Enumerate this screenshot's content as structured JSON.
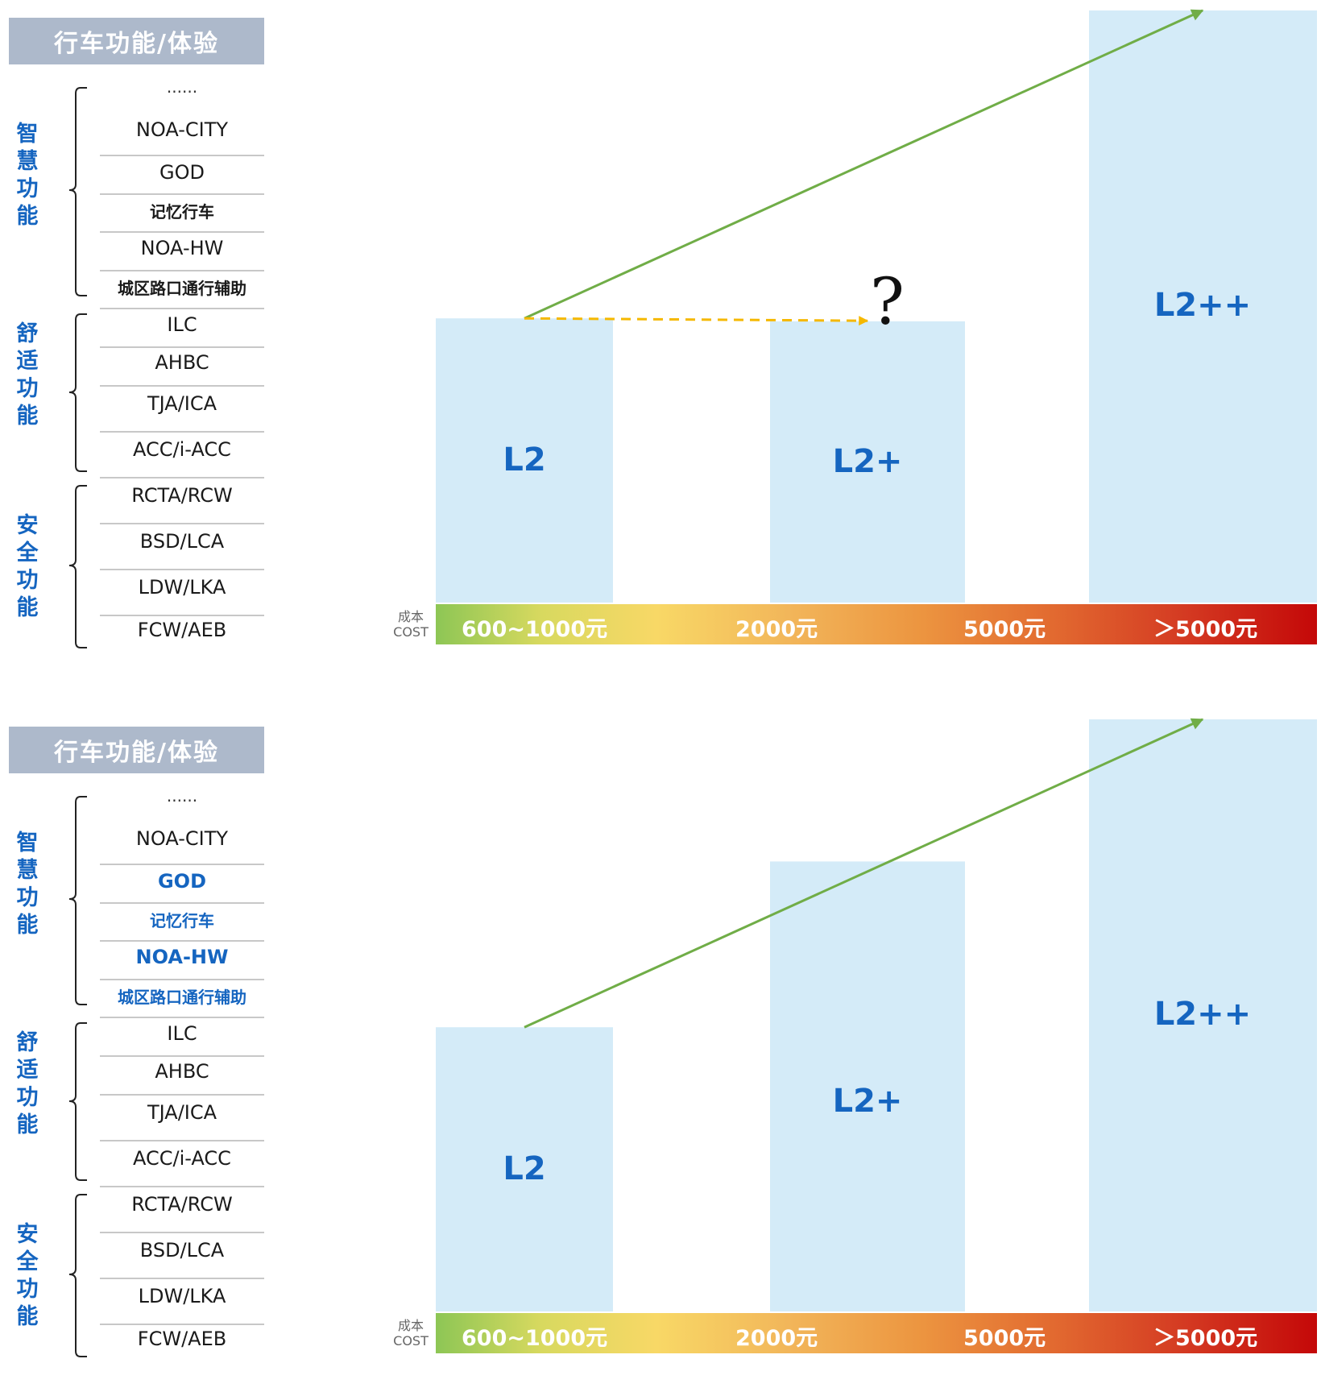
{
  "panels": [
    {
      "header": "行车功能/体验",
      "groups": [
        "智慧功能",
        "舒适功能",
        "安全功能"
      ],
      "features": [
        "......",
        "NOA-CITY",
        "GOD",
        "记忆行车",
        "NOA-HW",
        "城区路口通行辅助",
        "ILC",
        "AHBC",
        "TJA/ICA",
        "ACC/i-ACC",
        "RCTA/RCW",
        "BSD/LCA",
        "LDW/LKA",
        "FCW/AEB"
      ],
      "bars": [
        {
          "label": "L2",
          "level": 0.48
        },
        {
          "label": "L2+",
          "level": 0.475
        },
        {
          "label": "L2++",
          "level": 1.0
        }
      ],
      "cost": {
        "caption_cn": "成本",
        "caption_en": "COST",
        "labels": [
          "600~1000元",
          "2000元",
          "5000元",
          "＞5000元"
        ]
      },
      "question_mark": "?",
      "highlighted": []
    },
    {
      "header": "行车功能/体验",
      "groups": [
        "智慧功能",
        "舒适功能",
        "安全功能"
      ],
      "features": [
        "......",
        "NOA-CITY",
        "GOD",
        "记忆行车",
        "NOA-HW",
        "城区路口通行辅助",
        "ILC",
        "AHBC",
        "TJA/ICA",
        "ACC/i-ACC",
        "RCTA/RCW",
        "BSD/LCA",
        "LDW/LKA",
        "FCW/AEB"
      ],
      "bars": [
        {
          "label": "L2",
          "level": 0.48
        },
        {
          "label": "L2+",
          "level": 0.76
        },
        {
          "label": "L2++",
          "level": 1.0
        }
      ],
      "cost": {
        "caption_cn": "成本",
        "caption_en": "COST",
        "labels": [
          "600~1000元",
          "2000元",
          "5000元",
          "＞5000元"
        ]
      },
      "question_mark": "",
      "highlighted": [
        2,
        3,
        4,
        5
      ]
    }
  ],
  "colors": {
    "bar": "#d4ebf8",
    "accent_blue": "#1565c0",
    "trend_arrow": "#70ad47",
    "dashed_arrow": "#f5b800",
    "header_bg": "#adb9cb"
  }
}
